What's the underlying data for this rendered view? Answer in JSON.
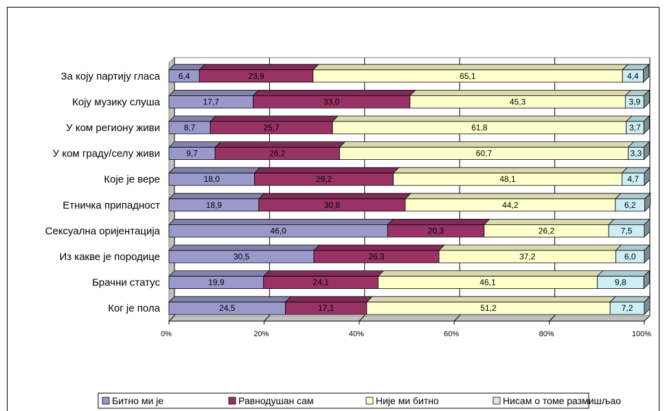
{
  "chart_data": {
    "type": "bar",
    "orientation": "horizontal",
    "stacked": "percent",
    "categories": [
      "За коју партију гласа",
      "Коју музику слуша",
      "У ком региону живи",
      "У ком граду/селу живи",
      "Које је вере",
      "Етничка припадност",
      "Сексуална оријентација",
      "Из какве је породице",
      "Брачни статус",
      "Ког је пола"
    ],
    "series": [
      {
        "name": "Битно ми је",
        "color": "#9999CC",
        "values": [
          6.4,
          17.7,
          8.7,
          9.7,
          18.0,
          18.9,
          46.0,
          30.5,
          19.9,
          24.5
        ],
        "labels": [
          "6,4",
          "17,7",
          "8,7",
          "9,7",
          "18,0",
          "18,9",
          "46,0",
          "30,5",
          "19,9",
          "24,5"
        ]
      },
      {
        "name": "Равнодушан сам",
        "color": "#993366",
        "values": [
          23.9,
          33.0,
          25.7,
          26.2,
          29.2,
          30.8,
          20.3,
          26.3,
          24.1,
          17.1
        ],
        "labels": [
          "23,9",
          "33,0",
          "25,7",
          "26,2",
          "29,2",
          "30,8",
          "20,3",
          "26,3",
          "24,1",
          "17,1"
        ]
      },
      {
        "name": "Није ми битно",
        "color": "#FFFFCC",
        "values": [
          65.1,
          45.3,
          61.8,
          60.7,
          48.1,
          44.2,
          26.2,
          37.2,
          46.1,
          51.2
        ],
        "labels": [
          "65,1",
          "45,3",
          "61,8",
          "60,7",
          "48,1",
          "44,2",
          "26,2",
          "37,2",
          "46,1",
          "51,2"
        ]
      },
      {
        "name": "Нисам о томе размишљао",
        "color": "#CCEEF4",
        "values": [
          4.4,
          3.9,
          3.7,
          3.3,
          4.7,
          6.2,
          7.5,
          6.0,
          9.8,
          7.2
        ],
        "labels": [
          "4,4",
          "3,9",
          "3,7",
          "3,3",
          "4,7",
          "6,2",
          "7,5",
          "6,0",
          "9,8",
          "7,2"
        ]
      }
    ],
    "xlim": [
      0,
      100
    ],
    "xticks": [
      "0%",
      "20%",
      "40%",
      "60%",
      "80%",
      "100%"
    ],
    "grid": true,
    "legend": "bottom",
    "title": "",
    "xlabel": "",
    "ylabel": ""
  }
}
